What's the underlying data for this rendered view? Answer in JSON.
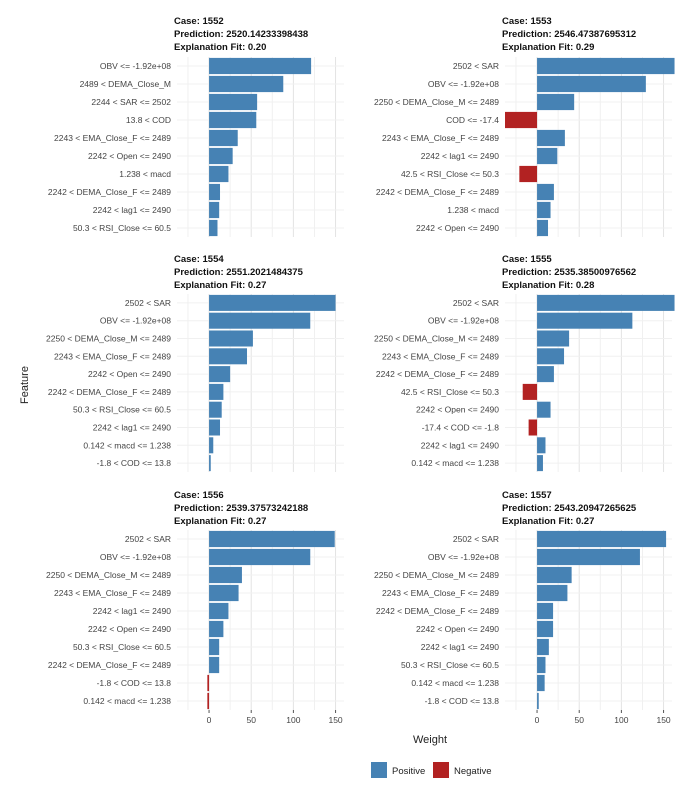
{
  "chart_data": {
    "type": "bar",
    "orientation": "horizontal",
    "xlabel": "Weight",
    "ylabel": "Feature",
    "xlim": [
      -38,
      160
    ],
    "xticks": [
      0,
      50,
      100,
      150
    ],
    "grid": true,
    "legend": {
      "placement": "bottom",
      "items": [
        {
          "label": "Positive",
          "color": "#4682B4"
        },
        {
          "label": "Negative",
          "color": "#B22222"
        }
      ]
    },
    "panels": [
      {
        "case": "Case: 1552",
        "prediction": "Prediction: 2520.14233398438",
        "fit": "Explanation Fit: 0.20",
        "features": [
          "OBV <= -1.92e+08",
          "2489 < DEMA_Close_M",
          "2244 < SAR <= 2502",
          "13.8 < COD",
          "2243 < EMA_Close_F <= 2489",
          "2242 < Open <= 2490",
          "1.238 < macd",
          "2242 < DEMA_Close_F <= 2489",
          "2242 < lag1 <= 2490",
          "50.3 < RSI_Close <= 60.5"
        ],
        "weights": [
          121,
          88,
          57,
          56,
          34,
          28,
          23,
          13,
          12,
          10
        ]
      },
      {
        "case": "Case: 1553",
        "prediction": "Prediction: 2546.47387695312",
        "fit": "Explanation Fit: 0.29",
        "features": [
          "2502 < SAR",
          "OBV <= -1.92e+08",
          "2250 < DEMA_Close_M <= 2489",
          "COD <= -17.4",
          "2243 < EMA_Close_F <= 2489",
          "2242 < lag1 <= 2490",
          "42.5 < RSI_Close <= 50.3",
          "2242 < DEMA_Close_F <= 2489",
          "1.238 < macd",
          "2242 < Open <= 2490"
        ],
        "weights": [
          163,
          129,
          44,
          -38,
          33,
          24,
          -21,
          20,
          16,
          13
        ]
      },
      {
        "case": "Case: 1554",
        "prediction": "Prediction: 2551.2021484375",
        "fit": "Explanation Fit: 0.27",
        "features": [
          "2502 < SAR",
          "OBV <= -1.92e+08",
          "2250 < DEMA_Close_M <= 2489",
          "2243 < EMA_Close_F <= 2489",
          "2242 < Open <= 2490",
          "2242 < DEMA_Close_F <= 2489",
          "50.3 < RSI_Close <= 60.5",
          "2242 < lag1 <= 2490",
          "0.142 < macd <= 1.238",
          "-1.8 < COD <= 13.8"
        ],
        "weights": [
          150,
          120,
          52,
          45,
          25,
          17,
          15,
          13,
          5,
          2
        ]
      },
      {
        "case": "Case: 1555",
        "prediction": "Prediction: 2535.38500976562",
        "fit": "Explanation Fit: 0.28",
        "features": [
          "2502 < SAR",
          "OBV <= -1.92e+08",
          "2250 < DEMA_Close_M <= 2489",
          "2243 < EMA_Close_F <= 2489",
          "2242 < DEMA_Close_F <= 2489",
          "42.5 < RSI_Close <= 50.3",
          "2242 < Open <= 2490",
          "-17.4 < COD <= -1.8",
          "2242 < lag1 <= 2490",
          "0.142 < macd <= 1.238"
        ],
        "weights": [
          163,
          113,
          38,
          32,
          20,
          -17,
          16,
          -10,
          10,
          7
        ]
      },
      {
        "case": "Case: 1556",
        "prediction": "Prediction: 2539.37573242188",
        "fit": "Explanation Fit: 0.27",
        "features": [
          "2502 < SAR",
          "OBV <= -1.92e+08",
          "2250 < DEMA_Close_M <= 2489",
          "2243 < EMA_Close_F <= 2489",
          "2242 < lag1 <= 2490",
          "2242 < Open <= 2490",
          "50.3 < RSI_Close <= 60.5",
          "2242 < DEMA_Close_F <= 2489",
          "-1.8 < COD <= 13.8",
          "0.142 < macd <= 1.238"
        ],
        "weights": [
          149,
          120,
          39,
          35,
          23,
          17,
          12,
          12,
          -2,
          -2
        ]
      },
      {
        "case": "Case: 1557",
        "prediction": "Prediction: 2543.20947265625",
        "fit": "Explanation Fit: 0.27",
        "features": [
          "2502 < SAR",
          "OBV <= -1.92e+08",
          "2250 < DEMA_Close_M <= 2489",
          "2243 < EMA_Close_F <= 2489",
          "2242 < DEMA_Close_F <= 2489",
          "2242 < Open <= 2490",
          "2242 < lag1 <= 2490",
          "50.3 < RSI_Close <= 60.5",
          "0.142 < macd <= 1.238",
          "-1.8 < COD <= 13.8"
        ],
        "weights": [
          153,
          122,
          41,
          36,
          19,
          19,
          14,
          10,
          9,
          2
        ]
      }
    ]
  }
}
